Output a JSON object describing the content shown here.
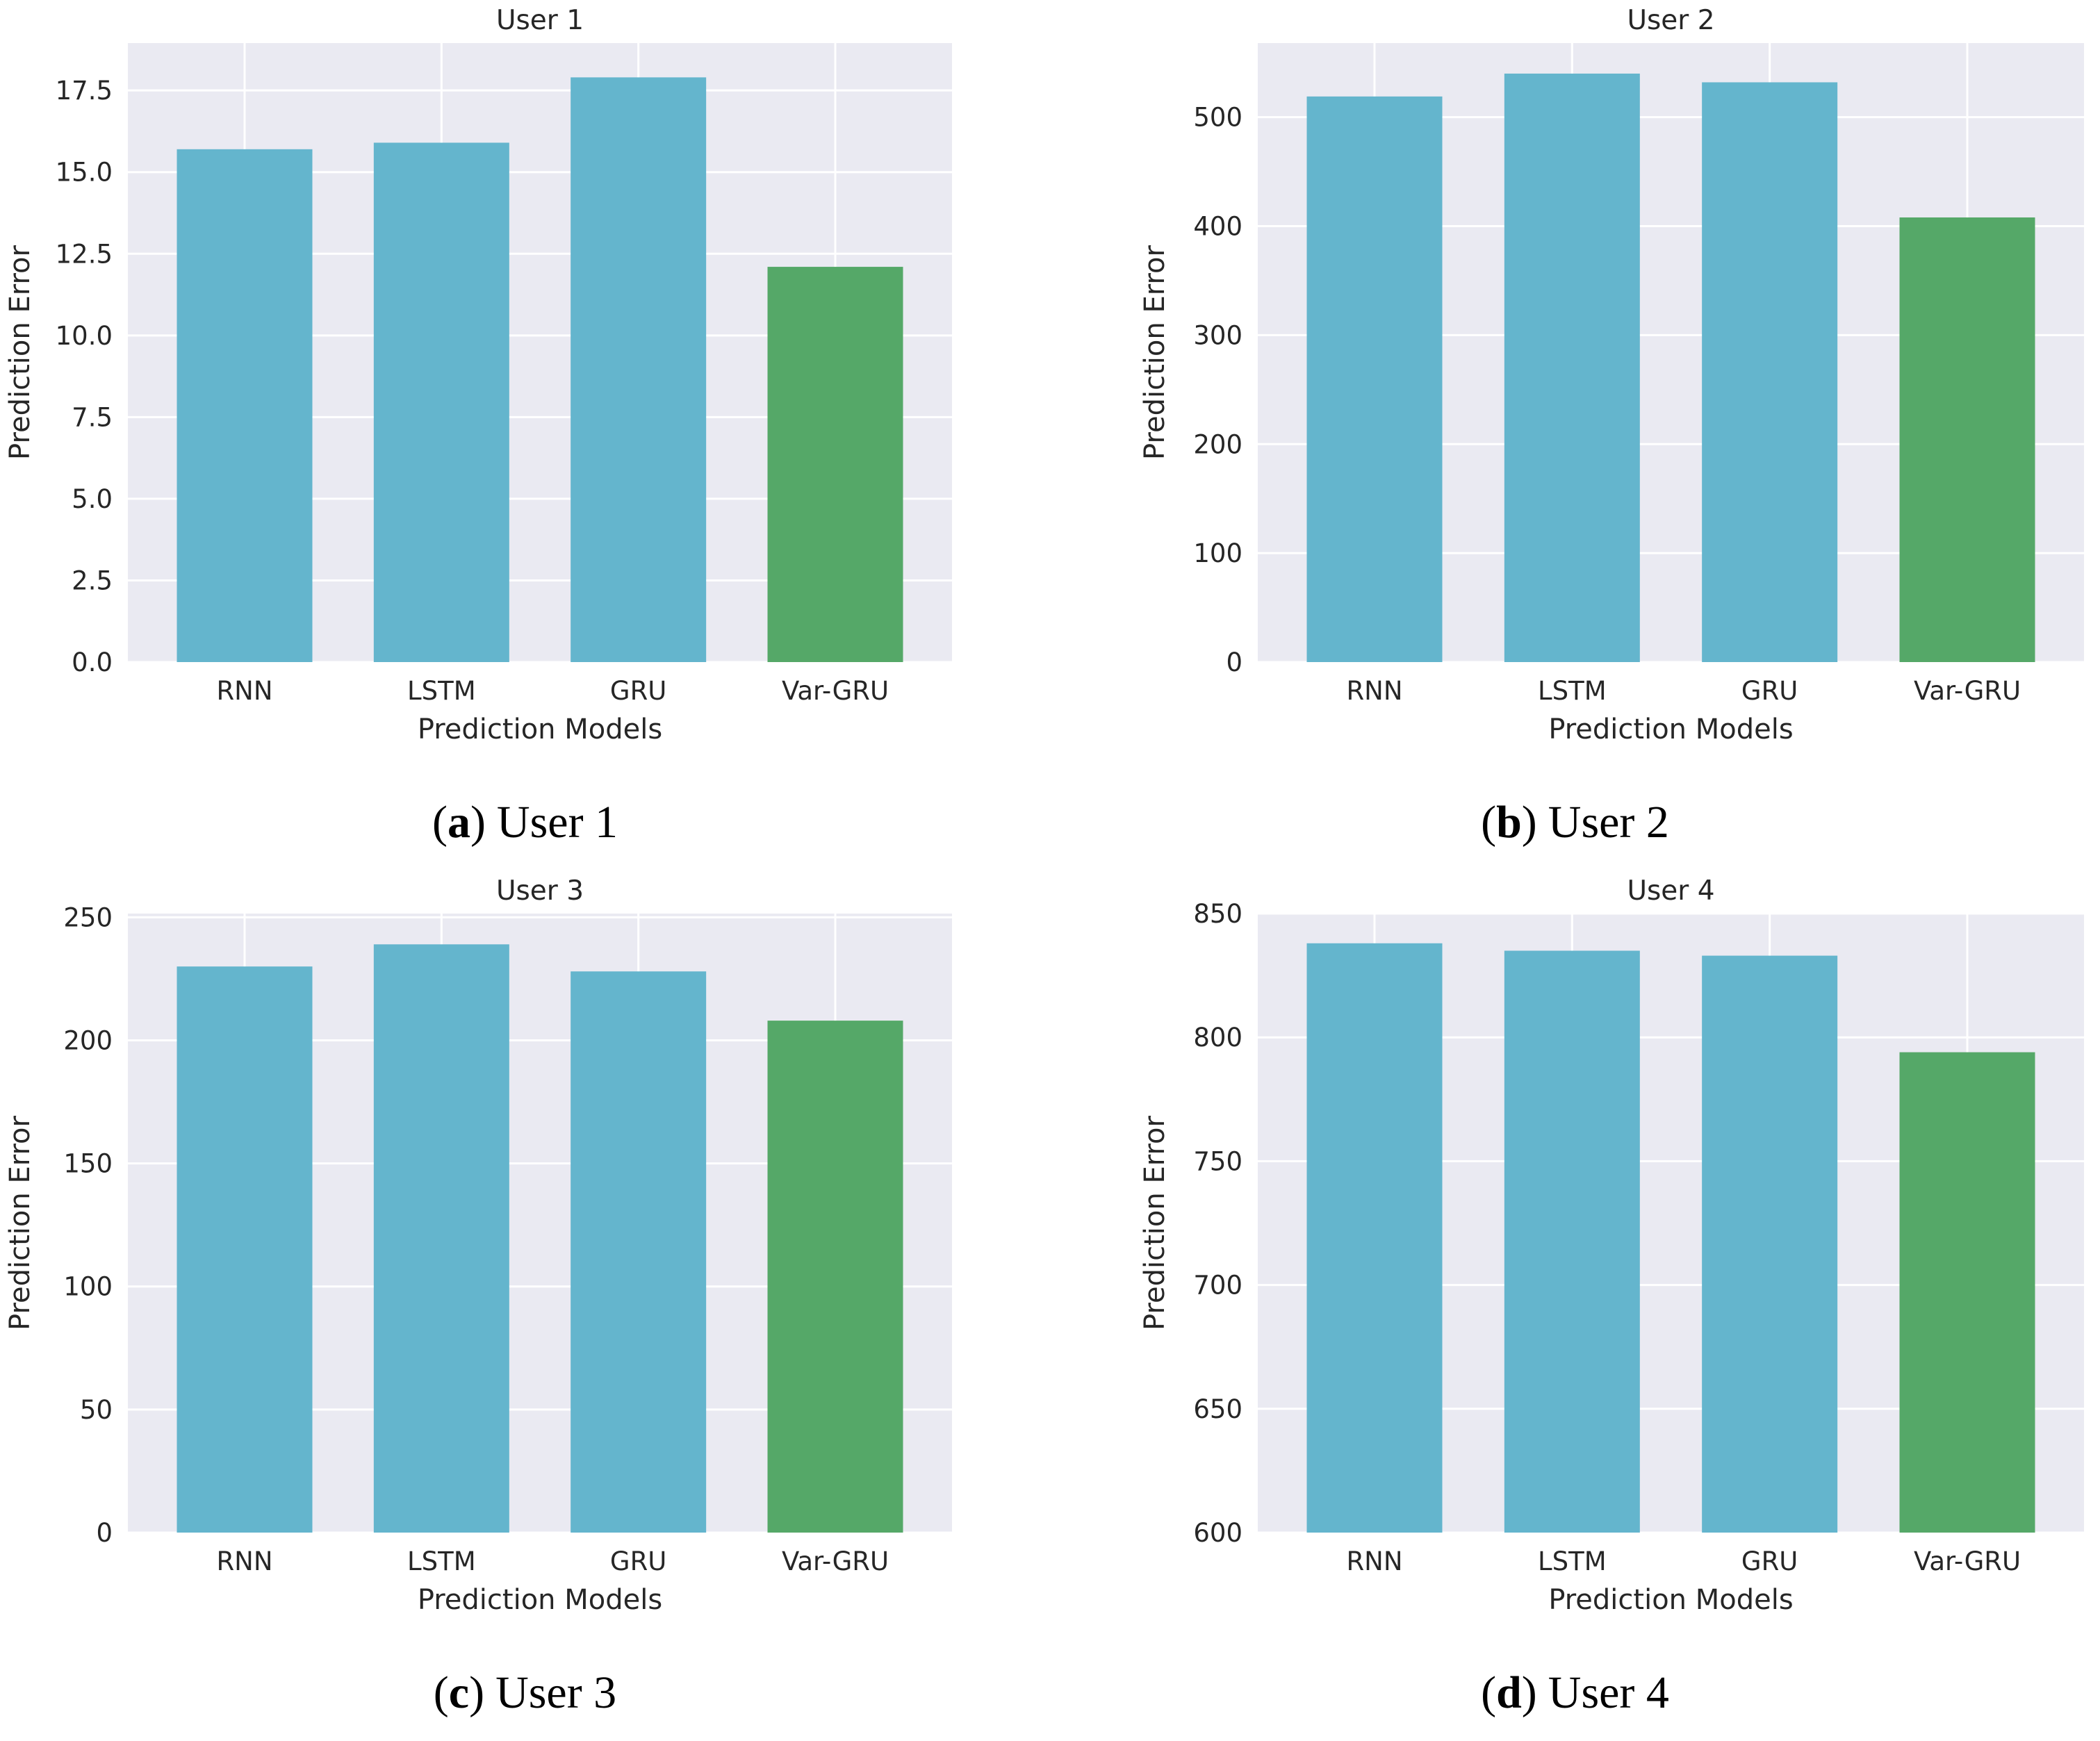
{
  "style": {
    "page_bg": "#FFFFFF",
    "plot_bg": "#EAEAF2",
    "grid_color": "#FFFFFF",
    "text_color": "#262626",
    "caption_color": "#000000",
    "bar_blue": "#64B5CD",
    "bar_green": "#55A868"
  },
  "chart_data": [
    {
      "type": "bar",
      "title": "User 1",
      "caption_letter": "a",
      "caption_text": "User 1",
      "xlabel": "Prediction Models",
      "ylabel": "Prediction Error",
      "categories": [
        "RNN",
        "LSTM",
        "GRU",
        "Var-GRU"
      ],
      "values": [
        15.7,
        15.9,
        17.9,
        12.1
      ],
      "bar_colors": [
        "#64B5CD",
        "#64B5CD",
        "#64B5CD",
        "#55A868"
      ],
      "yticks": [
        0.0,
        2.5,
        5.0,
        7.5,
        10.0,
        12.5,
        15.0,
        17.5
      ],
      "ytick_labels": [
        "0.0",
        "2.5",
        "5.0",
        "7.5",
        "10.0",
        "12.5",
        "15.0",
        "17.5"
      ],
      "ylim": [
        0,
        18.95
      ],
      "grid": true,
      "legend": false
    },
    {
      "type": "bar",
      "title": "User 2",
      "caption_letter": "b",
      "caption_text": "User 2",
      "xlabel": "Prediction Models",
      "ylabel": "Prediction Error",
      "categories": [
        "RNN",
        "LSTM",
        "GRU",
        "Var-GRU"
      ],
      "values": [
        519,
        540,
        532,
        408
      ],
      "bar_colors": [
        "#64B5CD",
        "#64B5CD",
        "#64B5CD",
        "#55A868"
      ],
      "yticks": [
        0,
        100,
        200,
        300,
        400,
        500
      ],
      "ytick_labels": [
        "0",
        "100",
        "200",
        "300",
        "400",
        "500"
      ],
      "ylim": [
        0,
        568
      ],
      "grid": true,
      "legend": false
    },
    {
      "type": "bar",
      "title": "User 3",
      "caption_letter": "c",
      "caption_text": "User 3",
      "xlabel": "Prediction Models",
      "ylabel": "Prediction Error",
      "categories": [
        "RNN",
        "LSTM",
        "GRU",
        "Var-GRU"
      ],
      "values": [
        230,
        239,
        228,
        208
      ],
      "bar_colors": [
        "#64B5CD",
        "#64B5CD",
        "#64B5CD",
        "#55A868"
      ],
      "yticks": [
        0,
        50,
        100,
        150,
        200,
        250
      ],
      "ytick_labels": [
        "0",
        "50",
        "100",
        "150",
        "200",
        "250"
      ],
      "ylim": [
        0,
        251.5
      ],
      "grid": true,
      "legend": false
    },
    {
      "type": "bar",
      "title": "User 4",
      "caption_letter": "d",
      "caption_text": "User 4",
      "xlabel": "Prediction Models",
      "ylabel": "Prediction Error",
      "categories": [
        "RNN",
        "LSTM",
        "GRU",
        "Var-GRU"
      ],
      "values": [
        838,
        835,
        833,
        794
      ],
      "bar_colors": [
        "#64B5CD",
        "#64B5CD",
        "#64B5CD",
        "#55A868"
      ],
      "yticks": [
        600,
        650,
        700,
        750,
        800,
        850
      ],
      "ytick_labels": [
        "600",
        "650",
        "700",
        "750",
        "800",
        "850"
      ],
      "ylim": [
        600,
        850
      ],
      "grid": true,
      "legend": false
    }
  ]
}
